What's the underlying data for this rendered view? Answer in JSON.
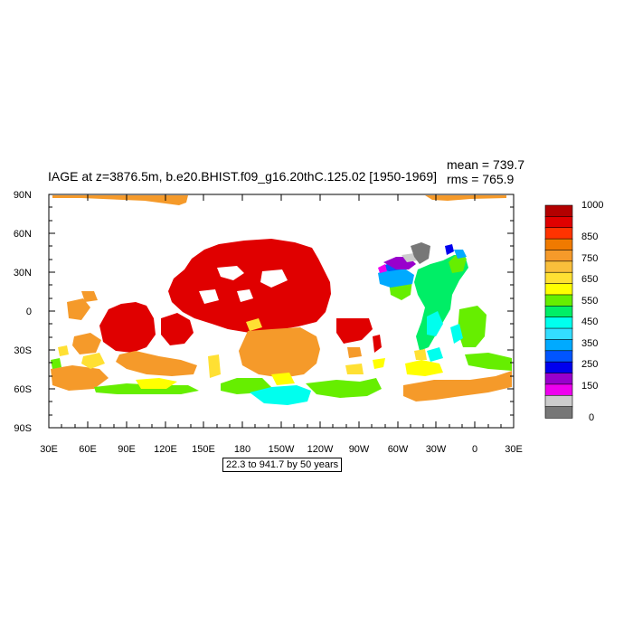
{
  "title": "IAGE at z=3876.5m, b.e20.BHIST.f09_g16.20thC.125.02 [1950-1969]",
  "stats": {
    "mean": "mean = 739.7",
    "rms": "rms = 765.9"
  },
  "range_label": "22.3 to 941.7 by 50 years",
  "axes": {
    "y_ticks": [
      "90N",
      "60N",
      "30N",
      "0",
      "30S",
      "60S",
      "90S"
    ],
    "x_ticks": [
      "30E",
      "60E",
      "90E",
      "120E",
      "150E",
      "180",
      "150W",
      "120W",
      "90W",
      "60W",
      "30W",
      "0",
      "30E"
    ]
  },
  "colorbar": {
    "labels": [
      "1000",
      "850",
      "750",
      "650",
      "550",
      "450",
      "350",
      "250",
      "150",
      "0"
    ],
    "colors": [
      "#b30000",
      "#e00000",
      "#ff3300",
      "#f07a00",
      "#f59a2a",
      "#f9bf3b",
      "#ffe033",
      "#ffff00",
      "#66ee00",
      "#00ee66",
      "#00ffee",
      "#33ddff",
      "#00aaff",
      "#0055ff",
      "#0000ee",
      "#9900cc",
      "#ee00ee",
      "#cccccc",
      "#777777"
    ]
  },
  "regions": [
    {
      "name": "arctic-strip-pacific",
      "color": "#f59a2a"
    },
    {
      "name": "arctic-strip-atlantic",
      "color": "#f59a2a"
    },
    {
      "name": "north-pacific-core",
      "color": "#e00000"
    },
    {
      "name": "south-pacific-band",
      "color": "#f59a2a"
    },
    {
      "name": "indian-ocean-red",
      "color": "#e00000"
    },
    {
      "name": "indian-ocean-orange",
      "color": "#f59a2a"
    },
    {
      "name": "southern-ocean-green",
      "color": "#66ee00"
    },
    {
      "name": "southern-ocean-cyan",
      "color": "#00ffee"
    },
    {
      "name": "north-atlantic-green",
      "color": "#00ee66"
    },
    {
      "name": "north-atlantic-blue",
      "color": "#0055ff"
    },
    {
      "name": "north-atlantic-purple",
      "color": "#9900cc"
    },
    {
      "name": "north-atlantic-gray",
      "color": "#777777"
    },
    {
      "name": "south-atlantic-orange",
      "color": "#f59a2a"
    }
  ]
}
